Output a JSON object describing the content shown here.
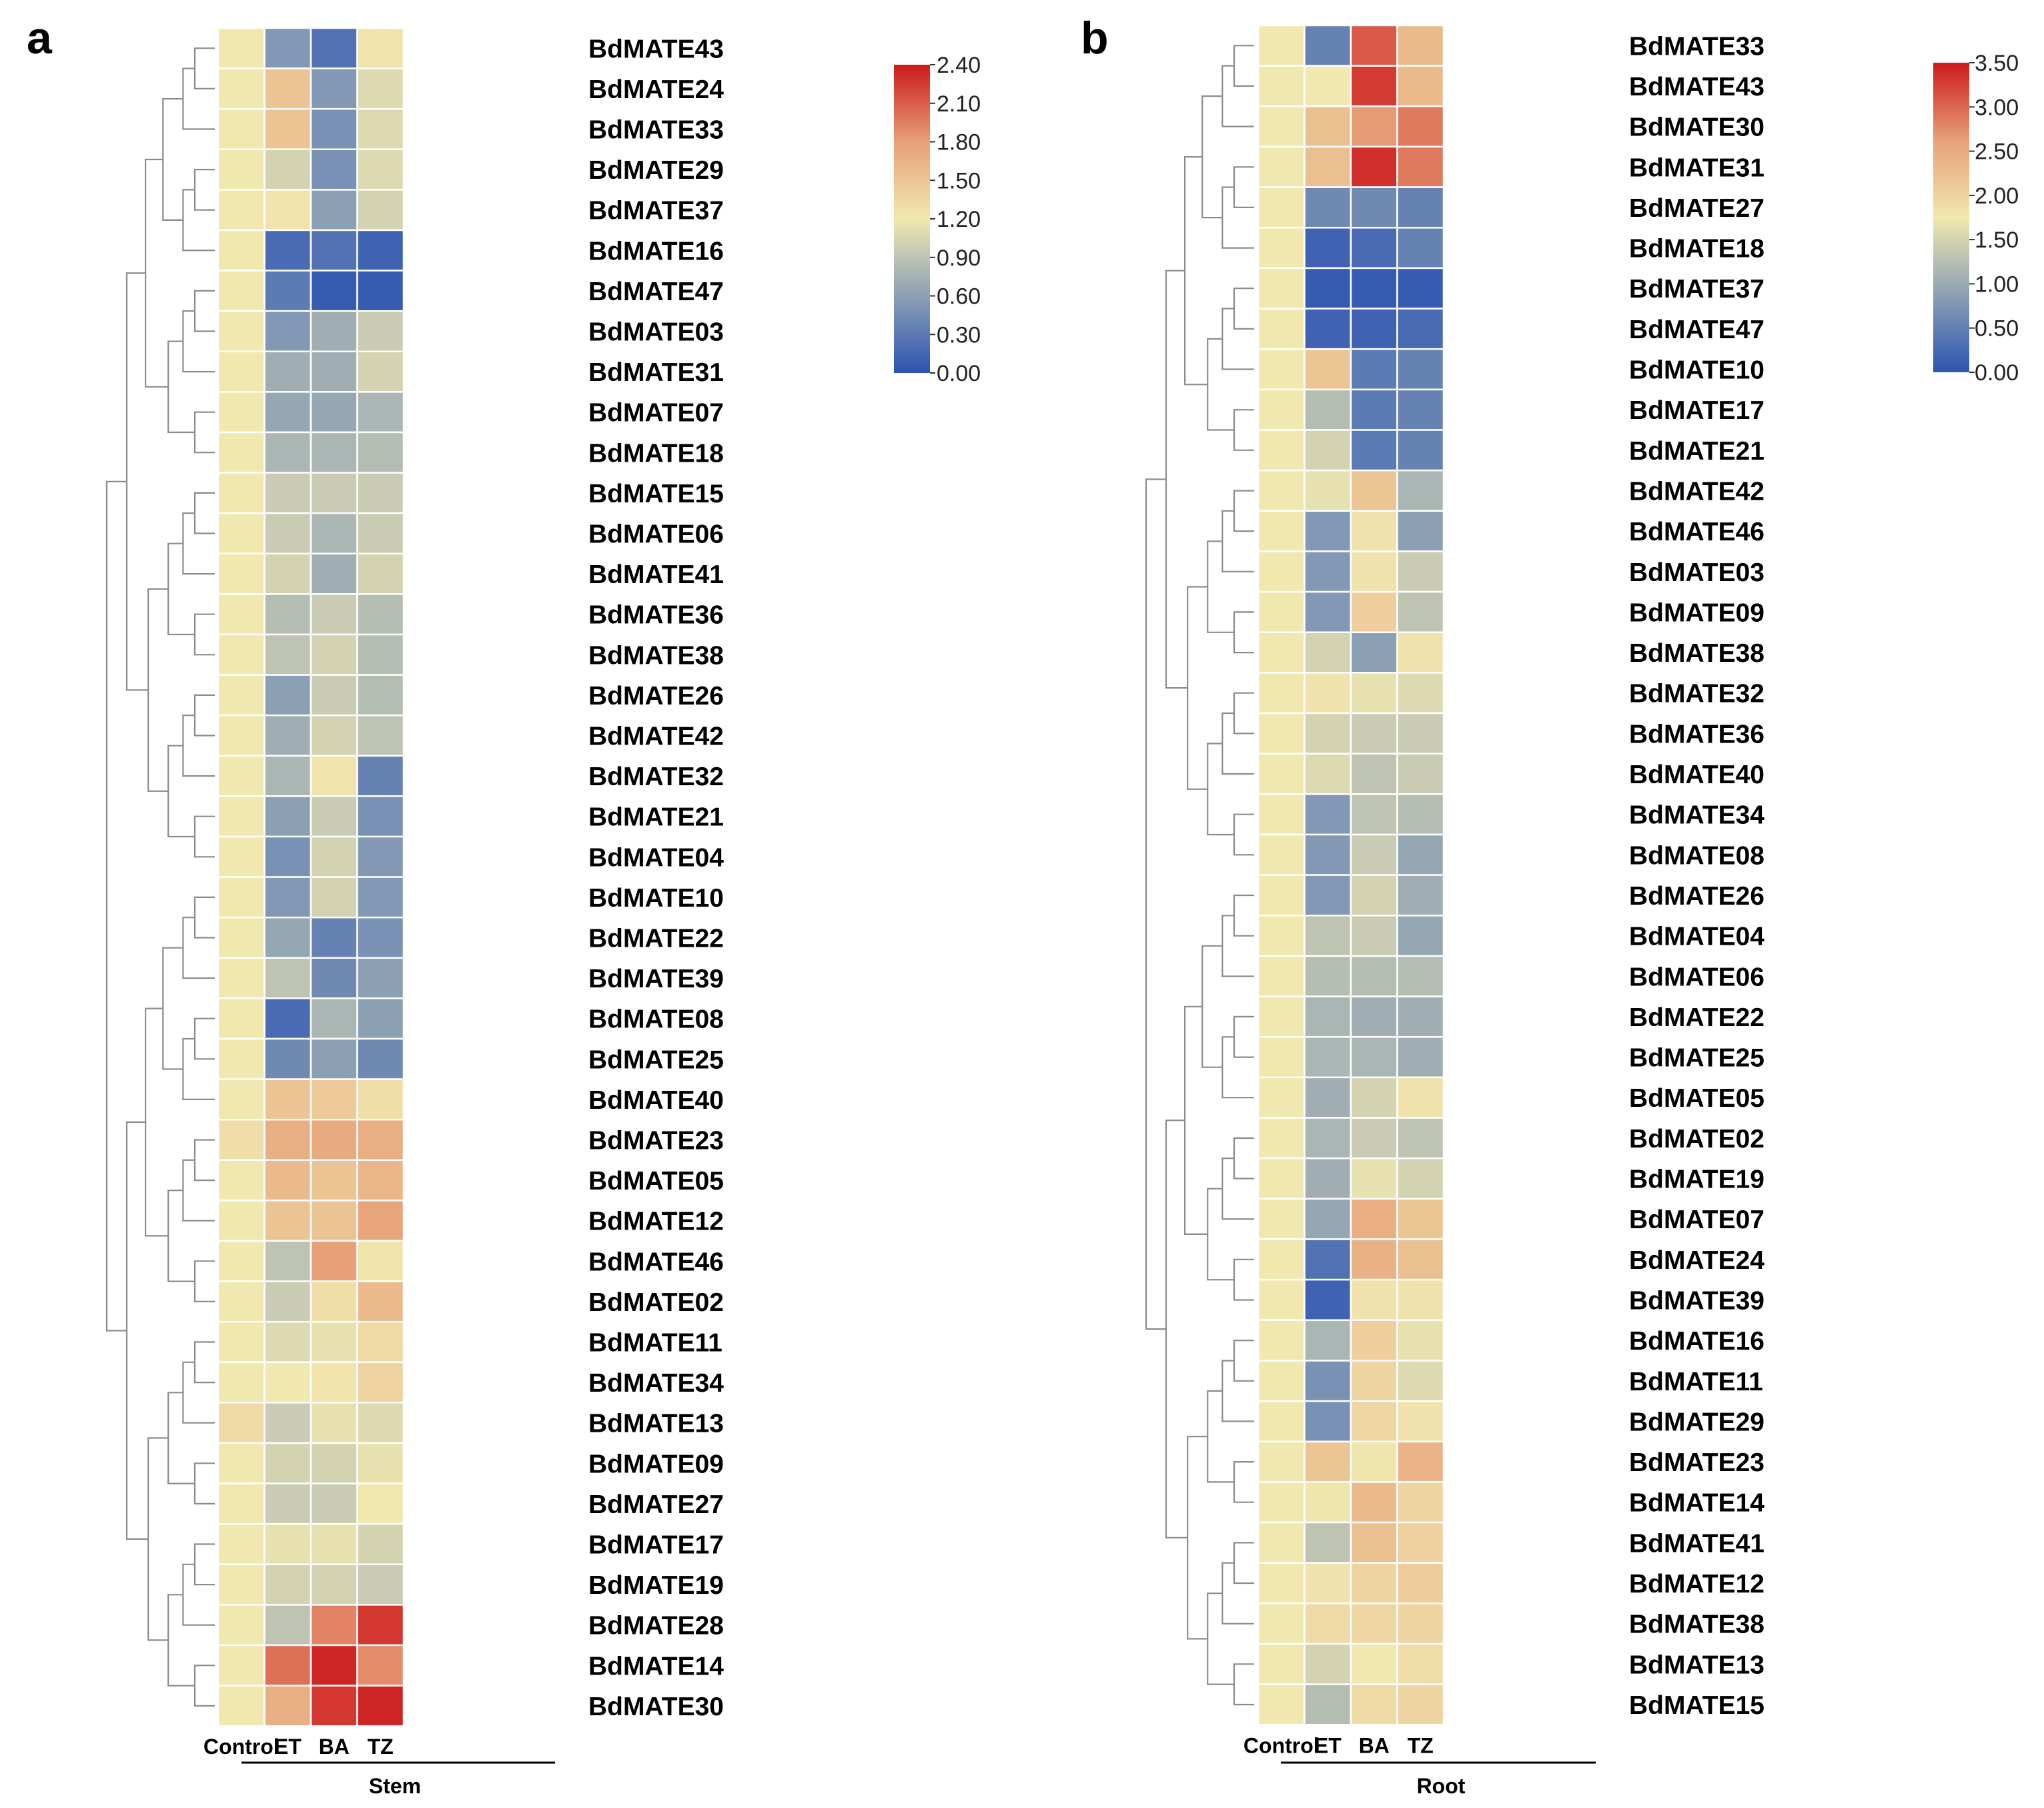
{
  "chart_data": [
    {
      "panel": "a",
      "type": "heatmap",
      "group_label": "Stem",
      "columns": [
        "Control",
        "ET",
        "BA",
        "TZ"
      ],
      "colorbar": {
        "min": 0.0,
        "max": 2.4,
        "ticks": [
          "2.40",
          "2.10",
          "1.80",
          "1.50",
          "1.20",
          "0.90",
          "0.60",
          "0.30",
          "0.00"
        ]
      },
      "rows": [
        "BdMATE43",
        "BdMATE24",
        "BdMATE33",
        "BdMATE29",
        "BdMATE37",
        "BdMATE16",
        "BdMATE47",
        "BdMATE03",
        "BdMATE31",
        "BdMATE07",
        "BdMATE18",
        "BdMATE15",
        "BdMATE06",
        "BdMATE41",
        "BdMATE36",
        "BdMATE38",
        "BdMATE26",
        "BdMATE42",
        "BdMATE32",
        "BdMATE21",
        "BdMATE04",
        "BdMATE10",
        "BdMATE22",
        "BdMATE39",
        "BdMATE08",
        "BdMATE25",
        "BdMATE40",
        "BdMATE23",
        "BdMATE05",
        "BdMATE12",
        "BdMATE46",
        "BdMATE02",
        "BdMATE11",
        "BdMATE34",
        "BdMATE13",
        "BdMATE09",
        "BdMATE27",
        "BdMATE17",
        "BdMATE19",
        "BdMATE28",
        "BdMATE14",
        "BdMATE30"
      ],
      "values": [
        [
          1.0,
          0.45,
          0.2,
          1.05
        ],
        [
          1.0,
          1.35,
          0.45,
          0.9
        ],
        [
          1.0,
          1.35,
          0.4,
          0.9
        ],
        [
          1.0,
          0.85,
          0.4,
          0.9
        ],
        [
          1.0,
          1.05,
          0.5,
          0.85
        ],
        [
          1.0,
          0.15,
          0.2,
          0.1
        ],
        [
          1.0,
          0.25,
          0.05,
          0.05
        ],
        [
          1.0,
          0.45,
          0.6,
          0.8
        ],
        [
          1.0,
          0.6,
          0.6,
          0.85
        ],
        [
          1.0,
          0.55,
          0.55,
          0.65
        ],
        [
          1.0,
          0.65,
          0.65,
          0.7
        ],
        [
          1.0,
          0.8,
          0.8,
          0.8
        ],
        [
          1.0,
          0.8,
          0.65,
          0.8
        ],
        [
          1.0,
          0.85,
          0.6,
          0.85
        ],
        [
          1.0,
          0.7,
          0.8,
          0.7
        ],
        [
          1.0,
          0.75,
          0.85,
          0.7
        ],
        [
          1.0,
          0.5,
          0.8,
          0.7
        ],
        [
          1.0,
          0.6,
          0.85,
          0.75
        ],
        [
          1.0,
          0.65,
          1.05,
          0.3
        ],
        [
          1.0,
          0.5,
          0.8,
          0.4
        ],
        [
          1.0,
          0.4,
          0.85,
          0.45
        ],
        [
          1.0,
          0.45,
          0.85,
          0.45
        ],
        [
          1.0,
          0.55,
          0.3,
          0.4
        ],
        [
          1.0,
          0.75,
          0.35,
          0.5
        ],
        [
          1.0,
          0.15,
          0.65,
          0.5
        ],
        [
          1.0,
          0.35,
          0.5,
          0.35
        ],
        [
          1.0,
          1.35,
          1.3,
          1.1
        ],
        [
          1.1,
          1.55,
          1.6,
          1.55
        ],
        [
          1.0,
          1.45,
          1.35,
          1.5
        ],
        [
          1.0,
          1.35,
          1.35,
          1.65
        ],
        [
          1.0,
          0.75,
          1.7,
          1.05
        ],
        [
          1.0,
          0.8,
          1.1,
          1.45
        ],
        [
          1.0,
          0.9,
          0.95,
          1.15
        ],
        [
          1.0,
          1.0,
          1.05,
          1.2
        ],
        [
          1.15,
          0.8,
          0.95,
          0.9
        ],
        [
          1.0,
          0.85,
          0.85,
          0.95
        ],
        [
          1.0,
          0.8,
          0.8,
          1.0
        ],
        [
          1.0,
          0.95,
          0.95,
          0.85
        ],
        [
          1.0,
          0.85,
          0.85,
          0.8
        ],
        [
          1.0,
          0.75,
          1.85,
          2.25
        ],
        [
          1.0,
          1.95,
          2.35,
          1.8
        ],
        [
          1.0,
          1.55,
          2.25,
          2.35
        ]
      ]
    },
    {
      "panel": "b",
      "type": "heatmap",
      "group_label": "Root",
      "columns": [
        "Control",
        "ET",
        "BA",
        "TZ"
      ],
      "colorbar": {
        "min": 0.0,
        "max": 3.5,
        "ticks": [
          "3.50",
          "3.00",
          "2.50",
          "2.00",
          "1.50",
          "1.00",
          "0.50",
          "0.00"
        ]
      },
      "rows": [
        "BdMATE33",
        "BdMATE43",
        "BdMATE30",
        "BdMATE31",
        "BdMATE27",
        "BdMATE18",
        "BdMATE37",
        "BdMATE47",
        "BdMATE10",
        "BdMATE17",
        "BdMATE21",
        "BdMATE42",
        "BdMATE46",
        "BdMATE03",
        "BdMATE09",
        "BdMATE38",
        "BdMATE32",
        "BdMATE36",
        "BdMATE40",
        "BdMATE34",
        "BdMATE08",
        "BdMATE26",
        "BdMATE04",
        "BdMATE06",
        "BdMATE22",
        "BdMATE25",
        "BdMATE05",
        "BdMATE02",
        "BdMATE19",
        "BdMATE07",
        "BdMATE24",
        "BdMATE39",
        "BdMATE16",
        "BdMATE11",
        "BdMATE29",
        "BdMATE23",
        "BdMATE14",
        "BdMATE41",
        "BdMATE12",
        "BdMATE38",
        "BdMATE13",
        "BdMATE15"
      ],
      "values": [
        [
          1.0,
          0.3,
          2.9,
          1.8
        ],
        [
          1.0,
          1.0,
          3.2,
          1.8
        ],
        [
          1.0,
          1.7,
          2.3,
          2.6
        ],
        [
          1.0,
          1.7,
          3.3,
          2.6
        ],
        [
          1.0,
          0.35,
          0.35,
          0.3
        ],
        [
          1.0,
          0.1,
          0.15,
          0.3
        ],
        [
          1.0,
          0.05,
          0.05,
          0.05
        ],
        [
          1.0,
          0.1,
          0.1,
          0.15
        ],
        [
          1.0,
          1.6,
          0.25,
          0.3
        ],
        [
          1.0,
          0.7,
          0.25,
          0.3
        ],
        [
          1.0,
          0.85,
          0.25,
          0.3
        ],
        [
          1.0,
          0.95,
          1.6,
          0.65
        ],
        [
          1.0,
          0.45,
          1.1,
          0.5
        ],
        [
          1.0,
          0.45,
          1.1,
          0.8
        ],
        [
          1.0,
          0.45,
          1.45,
          0.75
        ],
        [
          1.0,
          0.85,
          0.5,
          1.1
        ],
        [
          1.0,
          1.1,
          0.95,
          0.9
        ],
        [
          1.0,
          0.85,
          0.8,
          0.8
        ],
        [
          1.0,
          0.9,
          0.75,
          0.8
        ],
        [
          1.0,
          0.45,
          0.75,
          0.7
        ],
        [
          1.0,
          0.45,
          0.8,
          0.55
        ],
        [
          1.0,
          0.45,
          0.85,
          0.6
        ],
        [
          1.0,
          0.75,
          0.8,
          0.55
        ],
        [
          1.0,
          0.7,
          0.7,
          0.7
        ],
        [
          1.0,
          0.65,
          0.6,
          0.6
        ],
        [
          1.0,
          0.65,
          0.65,
          0.6
        ],
        [
          1.0,
          0.6,
          0.85,
          1.1
        ],
        [
          1.0,
          0.65,
          0.8,
          0.75
        ],
        [
          1.0,
          0.6,
          0.95,
          0.85
        ],
        [
          1.0,
          0.55,
          2.0,
          1.6
        ],
        [
          1.0,
          0.2,
          1.95,
          1.7
        ],
        [
          1.0,
          0.1,
          1.1,
          1.1
        ],
        [
          1.0,
          0.65,
          1.45,
          0.95
        ],
        [
          1.0,
          0.4,
          1.35,
          0.9
        ],
        [
          1.0,
          0.4,
          1.3,
          1.1
        ],
        [
          1.0,
          1.6,
          1.05,
          1.9
        ],
        [
          1.0,
          1.05,
          1.8,
          1.35
        ],
        [
          1.0,
          0.75,
          1.7,
          1.4
        ],
        [
          1.0,
          1.1,
          1.35,
          1.5
        ],
        [
          1.0,
          1.25,
          1.3,
          1.35
        ],
        [
          1.0,
          0.85,
          1.0,
          1.2
        ],
        [
          1.0,
          0.7,
          1.25,
          1.35
        ]
      ]
    }
  ]
}
